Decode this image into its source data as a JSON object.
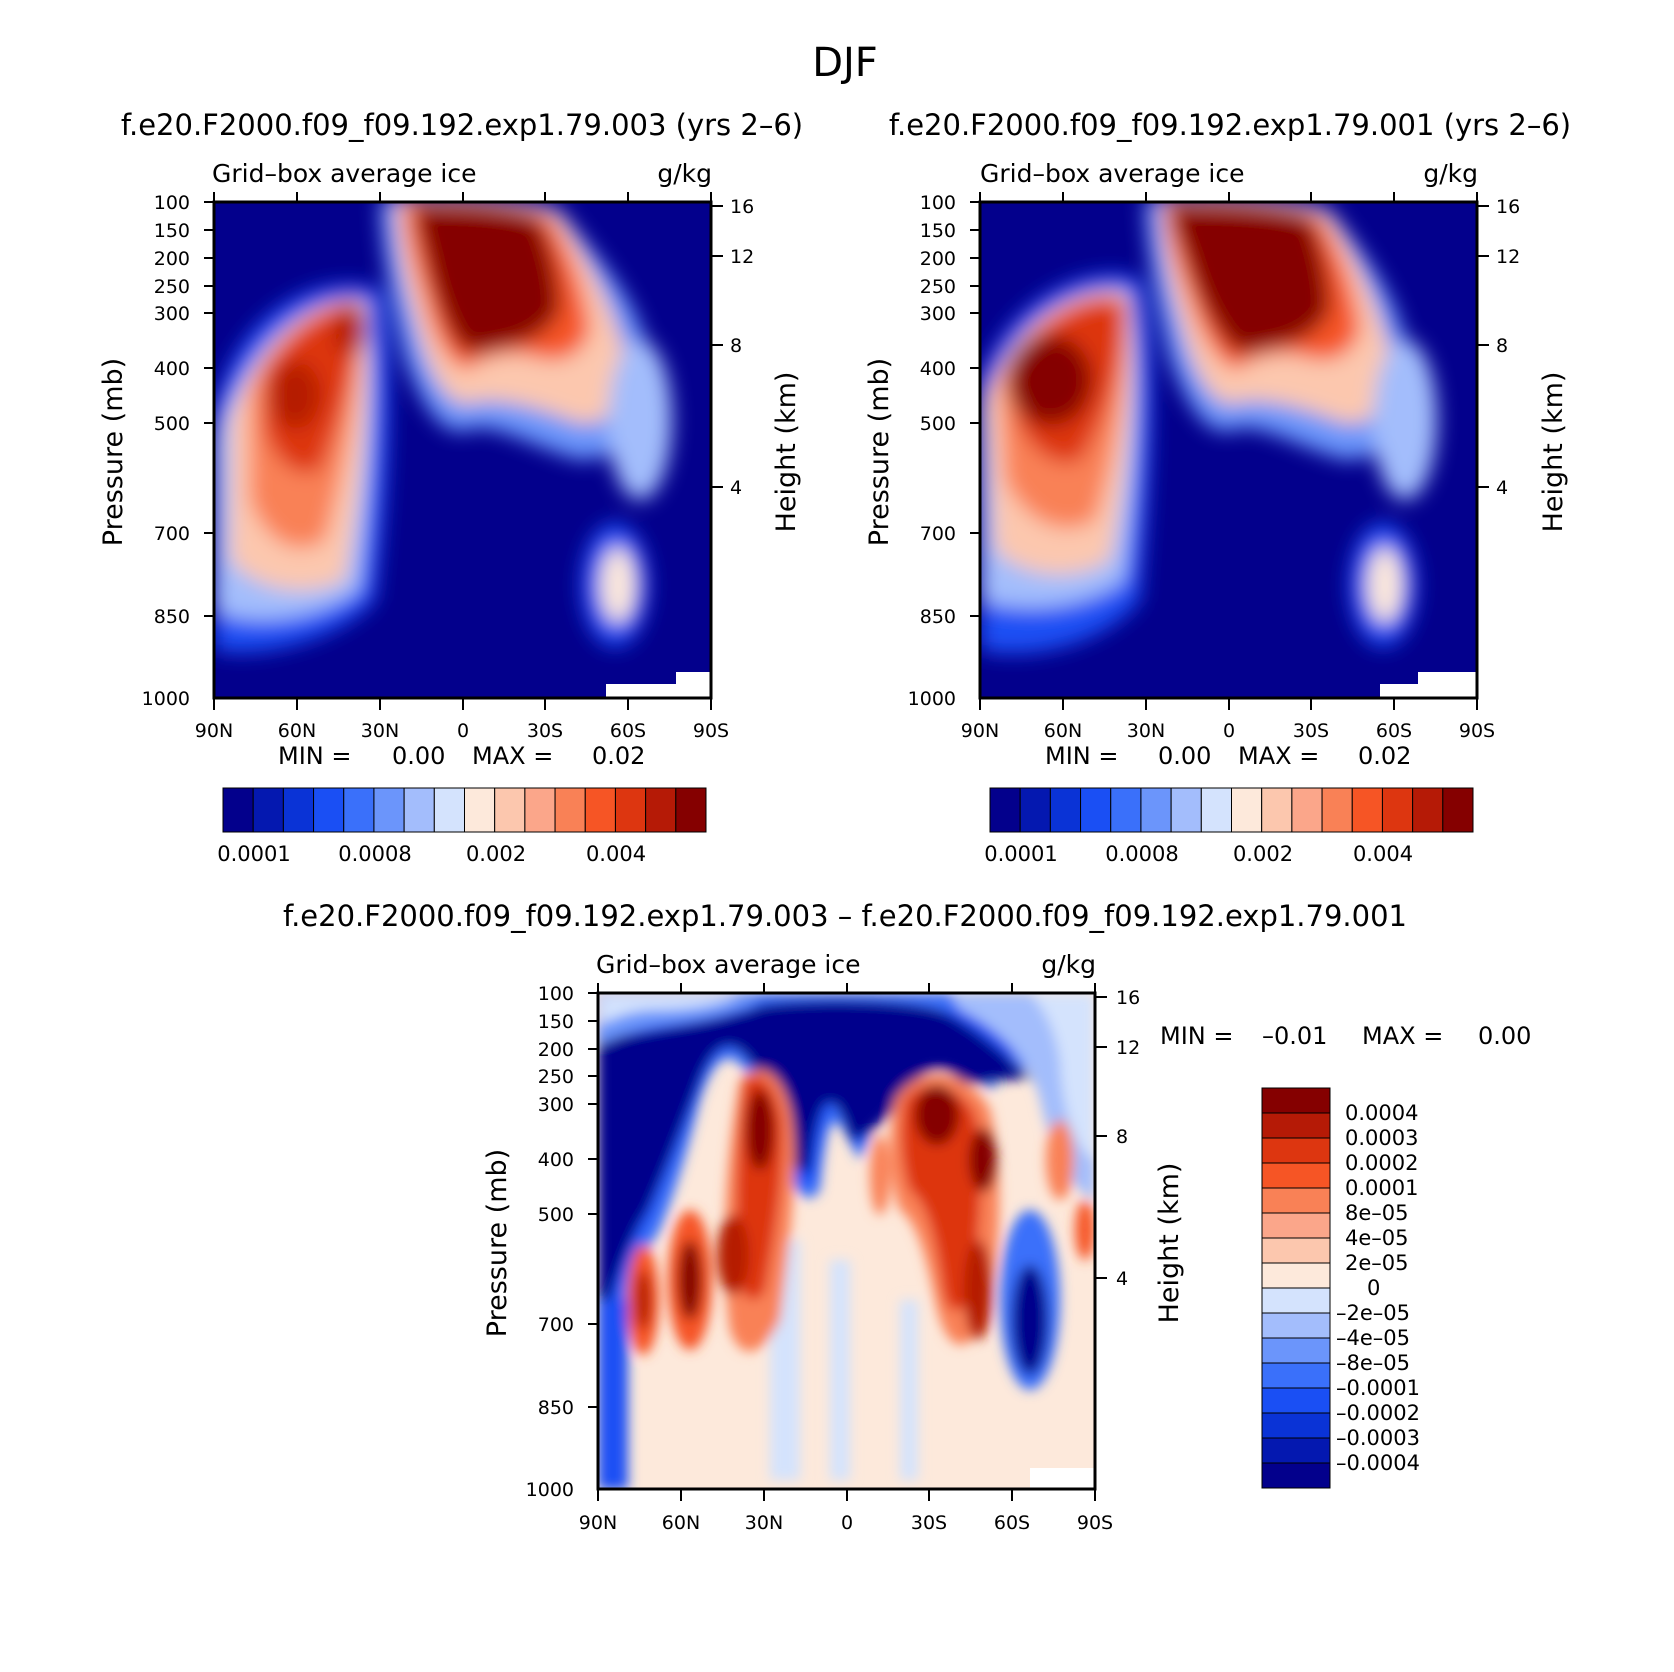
{
  "figure_title": "DJF",
  "chart_data": [
    {
      "type": "heatmap",
      "panel": "top-left",
      "title": "f.e20.F2000.f09_f09.192.exp1.79.003 (yrs 2–6)",
      "subtitle_left": "Grid–box average ice",
      "subtitle_right": "g/kg",
      "xlabel": "",
      "ylabel": "Pressure (mb)",
      "ylabel_right": "Height (km)",
      "x_ticks": [
        "90N",
        "60N",
        "30N",
        "0",
        "30S",
        "60S",
        "90S"
      ],
      "y_ticks": [
        "100",
        "150",
        "200",
        "250",
        "300",
        "400",
        "500",
        "700",
        "850",
        "1000"
      ],
      "y_right_ticks": [
        "16",
        "12",
        "8",
        "4"
      ],
      "stats": {
        "min_label": "MIN =",
        "min": "0.00",
        "max_label": "MAX =",
        "max": "0.02"
      },
      "colorbar": {
        "orientation": "horizontal",
        "tick_labels": [
          "0.0001",
          "0.0008",
          "0.002",
          "0.004"
        ],
        "levels": 16
      },
      "features": [
        {
          "name": "tropical upper-tropospheric ice maximum",
          "lat_center": -5,
          "pressure_center": 250,
          "level": 16
        },
        {
          "name": "NH midlatitude maximum",
          "lat_center": 62,
          "pressure_center": 450,
          "level": 14
        },
        {
          "name": "SH high-latitude low-level maximum",
          "lat_center": -57,
          "pressure_center": 800,
          "level": 10
        }
      ]
    },
    {
      "type": "heatmap",
      "panel": "top-right",
      "title": "f.e20.F2000.f09_f09.192.exp1.79.001 (yrs 2–6)",
      "subtitle_left": "Grid–box average ice",
      "subtitle_right": "g/kg",
      "xlabel": "",
      "ylabel": "Pressure (mb)",
      "ylabel_right": "Height (km)",
      "x_ticks": [
        "90N",
        "60N",
        "30N",
        "0",
        "30S",
        "60S",
        "90S"
      ],
      "y_ticks": [
        "100",
        "150",
        "200",
        "250",
        "300",
        "400",
        "500",
        "700",
        "850",
        "1000"
      ],
      "y_right_ticks": [
        "16",
        "12",
        "8",
        "4"
      ],
      "stats": {
        "min_label": "MIN =",
        "min": "0.00",
        "max_label": "MAX =",
        "max": "0.02"
      },
      "colorbar": {
        "orientation": "horizontal",
        "tick_labels": [
          "0.0001",
          "0.0008",
          "0.002",
          "0.004"
        ],
        "levels": 16
      },
      "features": [
        {
          "name": "tropical upper-tropospheric ice maximum",
          "lat_center": -5,
          "pressure_center": 250,
          "level": 16
        },
        {
          "name": "NH midlatitude maximum",
          "lat_center": 58,
          "pressure_center": 430,
          "level": 16
        },
        {
          "name": "SH high-latitude low-level maximum",
          "lat_center": -57,
          "pressure_center": 800,
          "level": 9
        }
      ]
    },
    {
      "type": "heatmap",
      "panel": "bottom-difference",
      "title": "f.e20.F2000.f09_f09.192.exp1.79.003 – f.e20.F2000.f09_f09.192.exp1.79.001",
      "subtitle_left": "Grid–box average ice",
      "subtitle_right": "g/kg",
      "xlabel": "",
      "ylabel": "Pressure (mb)",
      "ylabel_right": "Height (km)",
      "x_ticks": [
        "90N",
        "60N",
        "30N",
        "0",
        "30S",
        "60S",
        "90S"
      ],
      "y_ticks": [
        "100",
        "150",
        "200",
        "250",
        "300",
        "400",
        "500",
        "700",
        "850",
        "1000"
      ],
      "y_right_ticks": [
        "16",
        "12",
        "8",
        "4"
      ],
      "stats": {
        "min_label": "MIN =",
        "min": "–0.01",
        "max_label": "MAX =",
        "max": "0.00"
      },
      "colorbar": {
        "orientation": "vertical",
        "tick_labels": [
          "0.0004",
          "0.0003",
          "0.0002",
          "0.0001",
          "8e–05",
          "4e–05",
          "2e–05",
          "0",
          "–2e–05",
          "–4e–05",
          "–8e–05",
          "–0.0001",
          "–0.0002",
          "–0.0003",
          "–0.0004"
        ],
        "levels": 16
      },
      "features": [
        {
          "name": "negative upper troposphere",
          "lat_center": 0,
          "pressure_center": 200,
          "level": 0
        },
        {
          "name": "positive column near 30N",
          "lat_center": 28,
          "pressure_center": 400,
          "level": 15
        },
        {
          "name": "positive column near 40S",
          "lat_center": -38,
          "pressure_center": 380,
          "level": 15
        },
        {
          "name": "positive low-level cells NH",
          "lat_center": 55,
          "pressure_center": 750,
          "level": 14
        },
        {
          "name": "positive low-level cell SH",
          "lat_center": -50,
          "pressure_center": 760,
          "level": 15
        }
      ]
    }
  ],
  "colors": {
    "warm_palette": [
      "#fde9db",
      "#fcc7ae",
      "#fba68a",
      "#f98156",
      "#f65525",
      "#dd3610",
      "#b51a06",
      "#850000"
    ],
    "cool_palette": [
      "#03008c",
      "#0418b0",
      "#0a33d6",
      "#1a4ff4",
      "#3a70fa",
      "#6b95fb",
      "#a3bdfc",
      "#d4e3fd"
    ],
    "background": "#ffffff",
    "axis": "#000000"
  }
}
